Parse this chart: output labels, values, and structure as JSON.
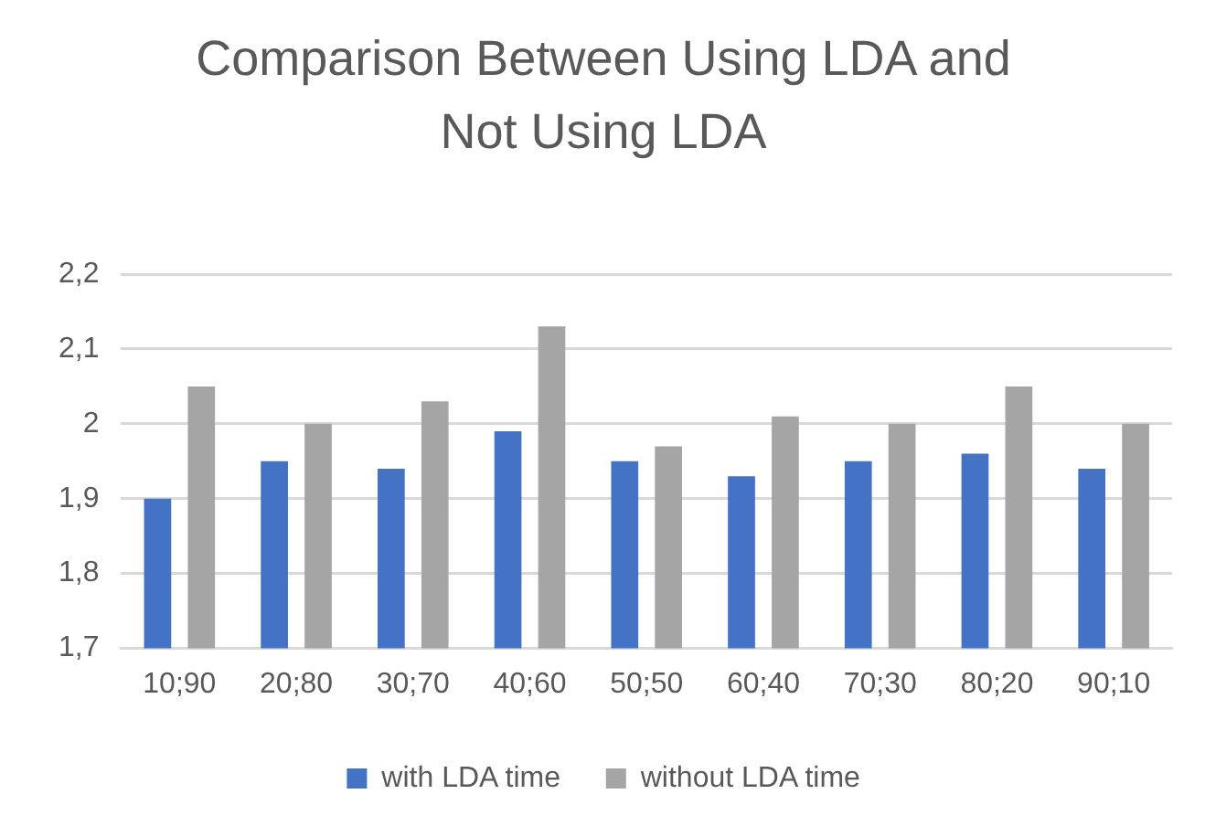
{
  "chart_data": {
    "type": "bar",
    "title": "Comparison Between Using LDA and Not Using LDA",
    "categories": [
      "10;90",
      "20;80",
      "30;70",
      "40;60",
      "50;50",
      "60;40",
      "70;30",
      "80;20",
      "90;10"
    ],
    "series": [
      {
        "name": "with LDA time",
        "color": "#4472c4",
        "values": [
          1.9,
          1.95,
          1.94,
          1.99,
          1.95,
          1.93,
          1.95,
          1.96,
          1.94
        ]
      },
      {
        "name": "without LDA time",
        "color": "#a5a5a5",
        "values": [
          2.05,
          2.0,
          2.03,
          2.13,
          1.97,
          2.01,
          2.0,
          2.05,
          2.0
        ]
      }
    ],
    "ylim": [
      1.7,
      2.2
    ],
    "yticks": [
      {
        "value": 1.7,
        "label": "1,7"
      },
      {
        "value": 1.8,
        "label": "1,8"
      },
      {
        "value": 1.9,
        "label": "1,9"
      },
      2,
      {
        "value": 2.1,
        "label": "2,1"
      },
      {
        "value": 2.2,
        "label": "2,2"
      }
    ],
    "grid": "y",
    "legend": "bottom"
  }
}
